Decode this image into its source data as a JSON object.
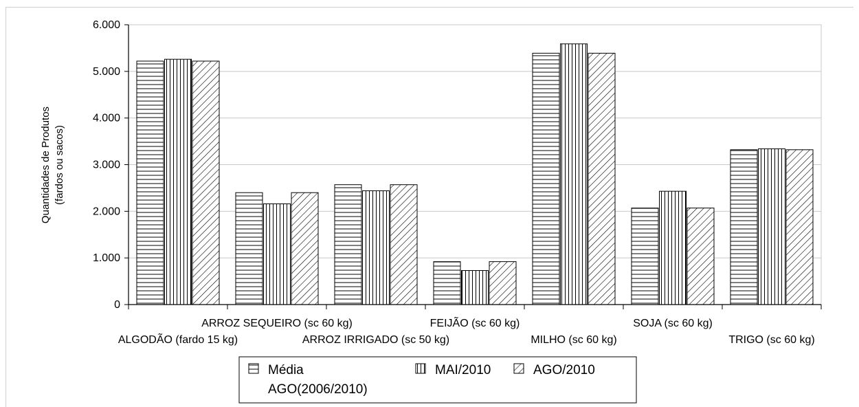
{
  "chart_data": {
    "type": "bar",
    "title": "",
    "ylabel_lines": [
      "Quantidades de Produtos",
      "(fardos ou sacos)"
    ],
    "xlabel": "",
    "ylim": [
      0,
      6000
    ],
    "yticks": [
      0,
      1000,
      2000,
      3000,
      4000,
      5000,
      6000
    ],
    "ytick_labels": [
      "0",
      "1.000",
      "2.000",
      "3.000",
      "4.000",
      "5.000",
      "6.000"
    ],
    "grid": true,
    "legend_position": "bottom",
    "categories": [
      "ALGODÃO (fardo 15 kg)",
      "ARROZ SEQUEIRO (sc 60 kg)",
      "ARROZ IRRIGADO (sc 50 kg)",
      "FEIJÃO (sc 60 kg)",
      "MILHO (sc 60 kg)",
      "SOJA (sc 60 kg)",
      "TRIGO (sc 60 kg)"
    ],
    "series": [
      {
        "name": "Média AGO(2006/2010)",
        "pattern": "horizontal-lines",
        "values": [
          5220,
          2400,
          2570,
          920,
          5390,
          2070,
          3320
        ]
      },
      {
        "name": "MAI/2010",
        "pattern": "vertical-lines",
        "values": [
          5260,
          2160,
          2440,
          730,
          5590,
          2430,
          3340
        ]
      },
      {
        "name": "AGO/2010",
        "pattern": "diagonal-lines",
        "values": [
          5220,
          2400,
          2570,
          920,
          5390,
          2070,
          3320
        ]
      }
    ]
  },
  "legend": {
    "item1_line1": "Média",
    "item1_line2": "AGO(2006/2010)",
    "item2": "MAI/2010",
    "item3": "AGO/2010"
  }
}
